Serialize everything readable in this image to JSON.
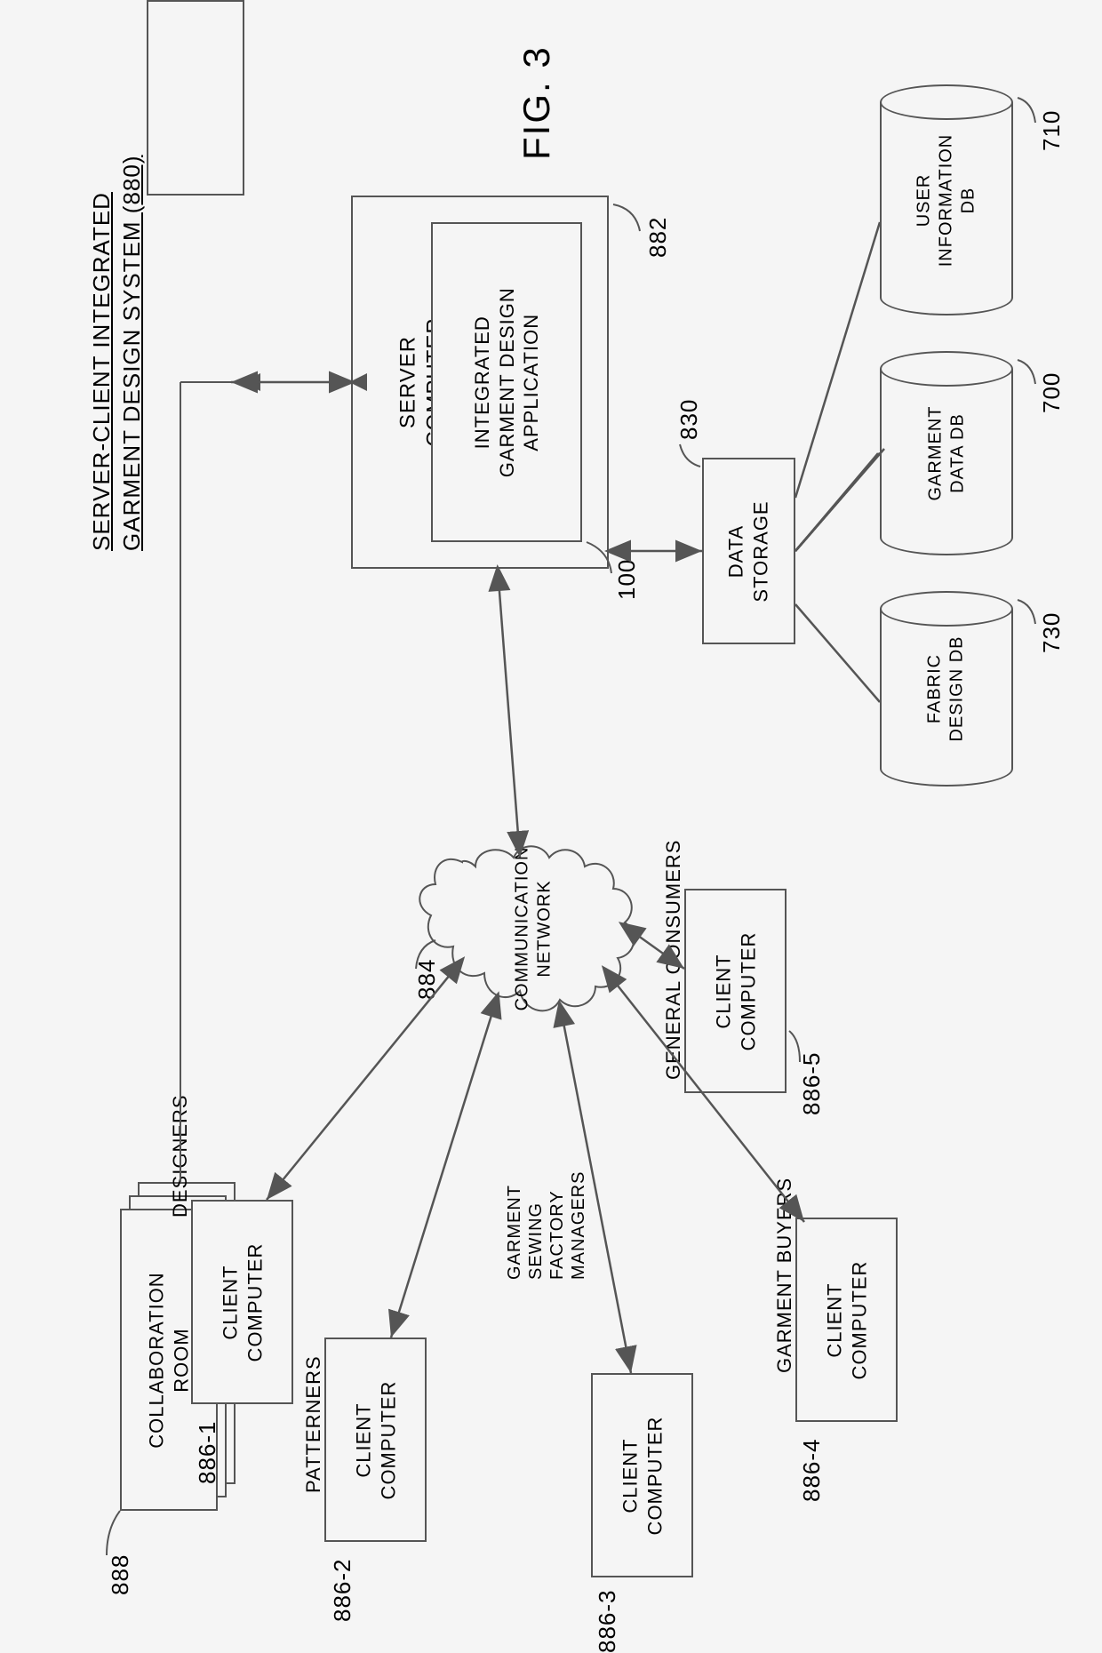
{
  "figure": {
    "title": "FIG. 3",
    "system_title_line1": "SERVER-CLIENT INTEGRATED",
    "system_title_line2": "GARMENT DESIGN SYSTEM (880)"
  },
  "server": {
    "label": "SERVER\nCOMPUTER",
    "ref": "882",
    "app_label": "INTEGRATED\nGARMENT DESIGN\nAPPLICATION",
    "app_ref": "100"
  },
  "collab": {
    "label": "COLLABORATION\nROOM",
    "ref": "888"
  },
  "storage": {
    "label": "DATA\nSTORAGE",
    "ref": "830"
  },
  "db": {
    "user": {
      "label": "USER\nINFORMATION\nDB",
      "ref": "710"
    },
    "garment": {
      "label": "GARMENT\nDATA DB",
      "ref": "700"
    },
    "fabric": {
      "label": "FABRIC\nDESIGN DB",
      "ref": "730"
    }
  },
  "network": {
    "label": "COMMUNICATION\nNETWORK",
    "ref": "884"
  },
  "clients": {
    "designers": {
      "role": "DESIGNERS",
      "label": "CLIENT\nCOMPUTER",
      "ref": "886-1"
    },
    "patterners": {
      "role": "PATTERNERS",
      "label": "CLIENT\nCOMPUTER",
      "ref": "886-2"
    },
    "factory": {
      "role": "GARMENT\nSEWING\nFACTORY\nMANAGERS",
      "label": "CLIENT\nCOMPUTER",
      "ref": "886-3"
    },
    "buyers": {
      "role": "GARMENT BUYERS",
      "label": "CLIENT\nCOMPUTER",
      "ref": "886-4"
    },
    "consumers": {
      "role": "GENERAL CONSUMERS",
      "label": "CLIENT\nCOMPUTER",
      "ref": "886-5"
    }
  },
  "style": {
    "stroke": "#555555",
    "bg": "#f5f5f5",
    "font": "Arial"
  }
}
